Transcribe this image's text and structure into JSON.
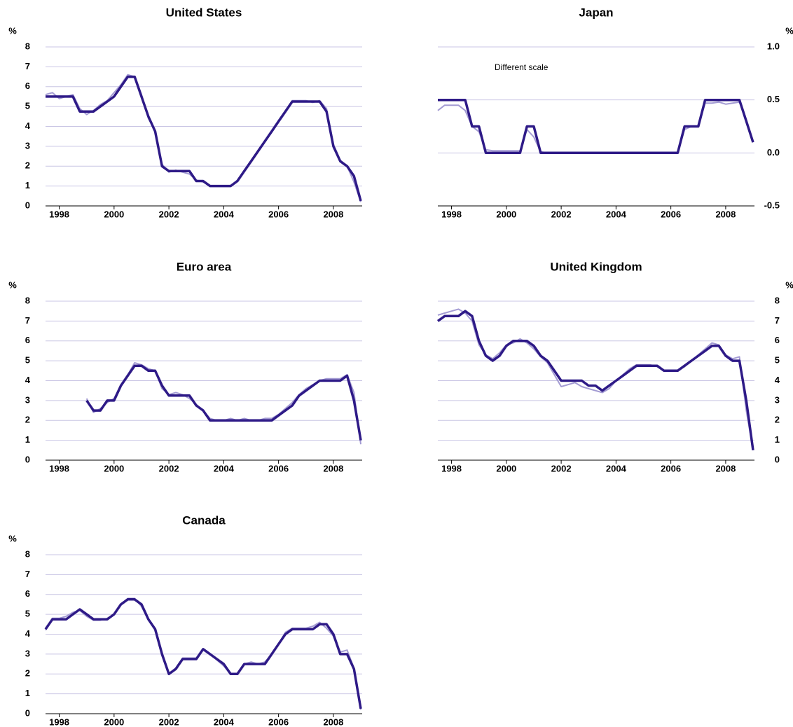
{
  "chart_data": [
    {
      "type": "line",
      "title": "United States",
      "unit": "%",
      "y_axis_side": "left",
      "grid": true,
      "x": [
        1997.5,
        1997.75,
        1998,
        1998.25,
        1998.5,
        1998.75,
        1999,
        1999.25,
        1999.5,
        1999.75,
        2000,
        2000.25,
        2000.5,
        2000.75,
        2001,
        2001.25,
        2001.5,
        2001.75,
        2002,
        2002.25,
        2002.5,
        2002.75,
        2003,
        2003.25,
        2003.5,
        2003.75,
        2004,
        2004.25,
        2004.5,
        2004.75,
        2005,
        2005.25,
        2005.5,
        2005.75,
        2006,
        2006.25,
        2006.5,
        2006.75,
        2007,
        2007.25,
        2007.5,
        2007.75,
        2008,
        2008.25,
        2008.5,
        2008.75,
        2009
      ],
      "xlim": [
        1997.5,
        2009.05
      ],
      "xticks": [
        1998,
        2000,
        2002,
        2004,
        2006,
        2008
      ],
      "ylim": [
        0,
        8
      ],
      "yticks": [
        0,
        1,
        2,
        3,
        4,
        5,
        6,
        7,
        8
      ],
      "series": [
        {
          "color": "#a39bd3",
          "values": [
            5.6,
            5.7,
            5.4,
            5.5,
            5.6,
            4.9,
            4.6,
            4.8,
            5.1,
            5.3,
            5.7,
            6.1,
            6.6,
            6.5,
            5.6,
            4.4,
            3.8,
            2.1,
            1.7,
            1.8,
            1.7,
            1.6,
            1.3,
            1.2,
            1.0,
            1.0,
            1.0,
            1.0,
            1.3,
            1.8,
            2.3,
            2.8,
            3.3,
            3.8,
            4.3,
            4.8,
            5.3,
            5.3,
            5.3,
            5.2,
            5.3,
            4.9,
            3.1,
            2.3,
            2.0,
            1.2,
            0.2
          ]
        },
        {
          "color": "#2e1a87",
          "values": [
            5.5,
            5.5,
            5.5,
            5.5,
            5.5,
            4.75,
            4.75,
            4.75,
            5.0,
            5.25,
            5.5,
            6.0,
            6.5,
            6.5,
            5.5,
            4.5,
            3.75,
            2.0,
            1.75,
            1.75,
            1.75,
            1.75,
            1.25,
            1.25,
            1.0,
            1.0,
            1.0,
            1.0,
            1.25,
            1.75,
            2.25,
            2.75,
            3.25,
            3.75,
            4.25,
            4.75,
            5.25,
            5.25,
            5.25,
            5.25,
            5.25,
            4.75,
            3.0,
            2.25,
            2.0,
            1.5,
            0.25
          ]
        }
      ]
    },
    {
      "type": "line",
      "title": "Japan",
      "unit": "%",
      "y_axis_side": "right",
      "grid": true,
      "annotation": "Different scale",
      "x": [
        1997.5,
        1997.75,
        1998,
        1998.25,
        1998.5,
        1998.75,
        1999,
        1999.25,
        1999.5,
        1999.75,
        2000,
        2000.25,
        2000.5,
        2000.75,
        2001,
        2001.25,
        2001.5,
        2001.75,
        2002,
        2002.25,
        2002.5,
        2002.75,
        2003,
        2003.25,
        2003.5,
        2003.75,
        2004,
        2004.25,
        2004.5,
        2004.75,
        2005,
        2005.25,
        2005.5,
        2005.75,
        2006,
        2006.25,
        2006.5,
        2006.75,
        2007,
        2007.25,
        2007.5,
        2007.75,
        2008,
        2008.25,
        2008.5,
        2008.75,
        2009
      ],
      "xlim": [
        1997.5,
        2009.05
      ],
      "xticks": [
        1998,
        2000,
        2002,
        2004,
        2006,
        2008
      ],
      "ylim": [
        -0.5,
        1.0
      ],
      "yticks": [
        -0.5,
        {
          "value": 0,
          "label": "0.0"
        },
        0.5,
        {
          "value": 1,
          "label": "1.0"
        }
      ],
      "series": [
        {
          "color": "#a39bd3",
          "values": [
            0.4,
            0.45,
            0.45,
            0.45,
            0.4,
            0.25,
            0.2,
            0.03,
            0.02,
            0.02,
            0.02,
            0.02,
            0.02,
            0.22,
            0.15,
            0.01,
            0,
            0,
            0,
            0,
            0,
            0,
            0,
            0,
            0,
            0,
            0,
            0,
            0,
            0,
            0,
            0,
            0,
            0,
            0,
            0,
            0.22,
            0.25,
            0.25,
            0.47,
            0.47,
            0.48,
            0.46,
            0.47,
            0.48,
            0.3,
            0.1
          ]
        },
        {
          "color": "#2e1a87",
          "values": [
            0.5,
            0.5,
            0.5,
            0.5,
            0.5,
            0.25,
            0.25,
            0,
            0,
            0,
            0,
            0,
            0,
            0.25,
            0.25,
            0,
            0,
            0,
            0,
            0,
            0,
            0,
            0,
            0,
            0,
            0,
            0,
            0,
            0,
            0,
            0,
            0,
            0,
            0,
            0,
            0,
            0.25,
            0.25,
            0.25,
            0.5,
            0.5,
            0.5,
            0.5,
            0.5,
            0.5,
            0.3,
            0.1
          ]
        }
      ]
    },
    {
      "type": "line",
      "title": "Euro area",
      "unit": "%",
      "y_axis_side": "left",
      "grid": true,
      "x": [
        1997.5,
        1997.75,
        1998,
        1998.25,
        1998.5,
        1998.75,
        1999,
        1999.25,
        1999.5,
        1999.75,
        2000,
        2000.25,
        2000.5,
        2000.75,
        2001,
        2001.25,
        2001.5,
        2001.75,
        2002,
        2002.25,
        2002.5,
        2002.75,
        2003,
        2003.25,
        2003.5,
        2003.75,
        2004,
        2004.25,
        2004.5,
        2004.75,
        2005,
        2005.25,
        2005.5,
        2005.75,
        2006,
        2006.25,
        2006.5,
        2006.75,
        2007,
        2007.25,
        2007.5,
        2007.75,
        2008,
        2008.25,
        2008.5,
        2008.75,
        2009
      ],
      "xlim": [
        1997.5,
        2009.05
      ],
      "xticks": [
        1998,
        2000,
        2002,
        2004,
        2006,
        2008
      ],
      "ylim": [
        0,
        8
      ],
      "yticks": [
        0,
        1,
        2,
        3,
        4,
        5,
        6,
        7,
        8
      ],
      "series": [
        {
          "color": "#a39bd3",
          "values": [
            null,
            null,
            null,
            null,
            null,
            null,
            3.1,
            2.4,
            2.6,
            2.9,
            3.1,
            3.8,
            4.3,
            4.9,
            4.8,
            4.6,
            4.5,
            3.6,
            3.3,
            3.4,
            3.3,
            3.1,
            2.8,
            2.5,
            2.1,
            2.0,
            2.0,
            2.1,
            2.0,
            2.1,
            2.0,
            2.0,
            2.1,
            2.1,
            2.3,
            2.6,
            2.9,
            3.3,
            3.6,
            3.8,
            4.0,
            4.1,
            4.1,
            4.1,
            4.3,
            3.4,
            0.8
          ]
        },
        {
          "color": "#2e1a87",
          "values": [
            null,
            null,
            null,
            null,
            null,
            null,
            3.0,
            2.5,
            2.5,
            3.0,
            3.0,
            3.75,
            4.25,
            4.75,
            4.75,
            4.5,
            4.5,
            3.75,
            3.25,
            3.25,
            3.25,
            3.25,
            2.75,
            2.5,
            2.0,
            2.0,
            2.0,
            2.0,
            2.0,
            2.0,
            2.0,
            2.0,
            2.0,
            2.0,
            2.25,
            2.5,
            2.75,
            3.25,
            3.5,
            3.75,
            4.0,
            4.0,
            4.0,
            4.0,
            4.25,
            3.0,
            1.0
          ]
        }
      ]
    },
    {
      "type": "line",
      "title": "United Kingdom",
      "unit": "%",
      "y_axis_side": "right",
      "grid": true,
      "x": [
        1997.5,
        1997.75,
        1998,
        1998.25,
        1998.5,
        1998.75,
        1999,
        1999.25,
        1999.5,
        1999.75,
        2000,
        2000.25,
        2000.5,
        2000.75,
        2001,
        2001.25,
        2001.5,
        2001.75,
        2002,
        2002.25,
        2002.5,
        2002.75,
        2003,
        2003.25,
        2003.5,
        2003.75,
        2004,
        2004.25,
        2004.5,
        2004.75,
        2005,
        2005.25,
        2005.5,
        2005.75,
        2006,
        2006.25,
        2006.5,
        2006.75,
        2007,
        2007.25,
        2007.5,
        2007.75,
        2008,
        2008.25,
        2008.5,
        2008.75,
        2009
      ],
      "xlim": [
        1997.5,
        2009.05
      ],
      "xticks": [
        1998,
        2000,
        2002,
        2004,
        2006,
        2008
      ],
      "ylim": [
        0,
        8
      ],
      "yticks": [
        0,
        1,
        2,
        3,
        4,
        5,
        6,
        7,
        8
      ],
      "series": [
        {
          "color": "#a39bd3",
          "values": [
            7.3,
            7.4,
            7.5,
            7.6,
            7.4,
            7.0,
            5.8,
            5.3,
            5.1,
            5.4,
            5.8,
            5.9,
            6.1,
            5.9,
            5.6,
            5.2,
            4.9,
            4.3,
            3.7,
            3.8,
            3.9,
            3.7,
            3.6,
            3.5,
            3.4,
            3.6,
            4.0,
            4.3,
            4.6,
            4.8,
            4.8,
            4.8,
            4.7,
            4.5,
            4.5,
            4.5,
            4.7,
            5.0,
            5.3,
            5.6,
            5.9,
            5.8,
            5.3,
            5.1,
            5.2,
            2.5,
            0.5
          ]
        },
        {
          "color": "#2e1a87",
          "values": [
            7.0,
            7.25,
            7.25,
            7.25,
            7.5,
            7.25,
            6.0,
            5.25,
            5.0,
            5.25,
            5.75,
            6.0,
            6.0,
            6.0,
            5.75,
            5.25,
            5.0,
            4.5,
            4.0,
            4.0,
            4.0,
            4.0,
            3.75,
            3.75,
            3.5,
            3.75,
            4.0,
            4.25,
            4.5,
            4.75,
            4.75,
            4.75,
            4.75,
            4.5,
            4.5,
            4.5,
            4.75,
            5.0,
            5.25,
            5.5,
            5.75,
            5.75,
            5.25,
            5.0,
            5.0,
            3.0,
            0.5
          ]
        }
      ]
    },
    {
      "type": "line",
      "title": "Canada",
      "unit": "%",
      "y_axis_side": "left",
      "grid": true,
      "x": [
        1997.5,
        1997.75,
        1998,
        1998.25,
        1998.5,
        1998.75,
        1999,
        1999.25,
        1999.5,
        1999.75,
        2000,
        2000.25,
        2000.5,
        2000.75,
        2001,
        2001.25,
        2001.5,
        2001.75,
        2002,
        2002.25,
        2002.5,
        2002.75,
        2003,
        2003.25,
        2003.5,
        2003.75,
        2004,
        2004.25,
        2004.5,
        2004.75,
        2005,
        2005.25,
        2005.5,
        2005.75,
        2006,
        2006.25,
        2006.5,
        2006.75,
        2007,
        2007.25,
        2007.5,
        2007.75,
        2008,
        2008.25,
        2008.5,
        2008.75,
        2009
      ],
      "xlim": [
        1997.5,
        2009.05
      ],
      "xticks": [
        1998,
        2000,
        2002,
        2004,
        2006,
        2008
      ],
      "ylim": [
        0,
        8
      ],
      "yticks": [
        0,
        1,
        2,
        3,
        4,
        5,
        6,
        7,
        8
      ],
      "series": [
        {
          "color": "#a39bd3",
          "values": [
            4.2,
            4.8,
            4.8,
            4.9,
            5.1,
            5.2,
            4.9,
            4.7,
            4.7,
            4.8,
            5.0,
            5.5,
            5.8,
            5.8,
            5.4,
            4.7,
            4.3,
            2.9,
            2.0,
            2.3,
            2.8,
            2.8,
            2.8,
            3.2,
            3.0,
            2.7,
            2.4,
            2.0,
            2.0,
            2.5,
            2.6,
            2.5,
            2.6,
            3.0,
            3.5,
            4.1,
            4.3,
            4.3,
            4.3,
            4.4,
            4.6,
            4.3,
            3.9,
            3.1,
            3.2,
            2.3,
            0.2
          ]
        },
        {
          "color": "#2e1a87",
          "values": [
            4.25,
            4.75,
            4.75,
            4.75,
            5.0,
            5.25,
            5.0,
            4.75,
            4.75,
            4.75,
            5.0,
            5.5,
            5.75,
            5.75,
            5.5,
            4.75,
            4.25,
            3.0,
            2.0,
            2.25,
            2.75,
            2.75,
            2.75,
            3.25,
            3.0,
            2.75,
            2.5,
            2.0,
            2.0,
            2.5,
            2.5,
            2.5,
            2.5,
            3.0,
            3.5,
            4.0,
            4.25,
            4.25,
            4.25,
            4.25,
            4.5,
            4.5,
            4.0,
            3.0,
            3.0,
            2.25,
            0.25
          ]
        }
      ]
    }
  ]
}
